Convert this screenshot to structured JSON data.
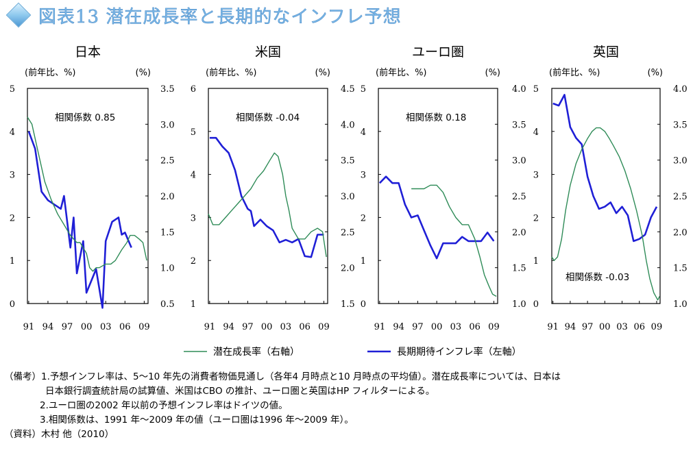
{
  "title": "図表13 潜在成長率と長期的なインフレ予想",
  "legend": {
    "potential": "潜在成長率（右軸）",
    "inflation": "長期期待インフレ率（左軸）"
  },
  "colors": {
    "potential": "#2e8b57",
    "inflation": "#1f1fd6"
  },
  "x_ticks": [
    "91",
    "94",
    "97",
    "00",
    "03",
    "06",
    "09"
  ],
  "chart_data": [
    {
      "type": "line",
      "title": "日本",
      "left_unit": "(前年比、%)",
      "right_unit": "(%)",
      "annotation": "相関係数 0.85",
      "annotation_pos": "top",
      "left_ticks": [
        "0",
        "1",
        "2",
        "3",
        "4",
        "5"
      ],
      "right_ticks": [
        "0.5",
        "1.0",
        "1.5",
        "2.0",
        "2.5",
        "3.0",
        "3.5"
      ],
      "ylim_left": [
        0,
        5
      ],
      "ylim_right": [
        0.5,
        3.5
      ],
      "x": [
        1991,
        1991.5,
        1992,
        1992.5,
        1993,
        1993.5,
        1994,
        1994.5,
        1995,
        1995.5,
        1996,
        1996.5,
        1997,
        1997.5,
        1998,
        1998.5,
        1999,
        1999.5,
        2000,
        2000.5,
        2001,
        2001.5,
        2002,
        2002.5,
        2003,
        2003.5,
        2004,
        2004.5,
        2005,
        2005.5,
        2006,
        2006.5,
        2007,
        2007.5,
        2008,
        2008.5,
        2009,
        2009.5
      ],
      "series": [
        {
          "name": "長期期待インフレ率（左軸）",
          "axis": "left",
          "values": [
            4.0,
            3.6,
            2.6,
            2.4,
            2.3,
            2.2,
            2.5,
            1.3,
            2.0,
            0.7,
            1.45,
            0.25,
            0.8,
            -0.1,
            1.45,
            1.9,
            2.0,
            1.6,
            1.65,
            1.3
          ],
          "x": [
            1991,
            1992,
            1993,
            1994,
            1995,
            1996,
            1996.5,
            1997.5,
            1998,
            1998.5,
            1999.5,
            2000,
            2001.5,
            2002.5,
            2003,
            2004,
            2005,
            2005.5,
            2006,
            2007
          ]
        },
        {
          "name": "潜在成長率（右軸）",
          "axis": "right",
          "values": [
            3.1,
            3.0,
            2.6,
            2.2,
            1.95,
            1.75,
            1.6,
            1.45,
            1.35,
            1.35,
            1.2,
            1.0,
            0.95,
            1.0,
            1.0,
            1.05,
            1.05,
            1.1,
            1.25,
            1.35,
            1.45,
            1.45,
            1.4,
            1.35,
            1.1
          ],
          "x": [
            1990.8,
            1991.5,
            1992.5,
            1993.5,
            1994.5,
            1995.5,
            1996.5,
            1997.5,
            1998.5,
            1999,
            2000,
            2000.5,
            2001,
            2001.5,
            2002,
            2003,
            2003.8,
            2004.5,
            2005.5,
            2006.3,
            2006.8,
            2007.5,
            2008.2,
            2008.8,
            2009.4
          ]
        }
      ]
    },
    {
      "type": "line",
      "title": "米国",
      "left_unit": "(前年比、%)",
      "right_unit": "(%)",
      "annotation": "相関係数 -0.04",
      "annotation_pos": "top",
      "left_ticks": [
        "1",
        "2",
        "3",
        "4",
        "5",
        "6"
      ],
      "right_ticks": [
        "1.5",
        "2.0",
        "2.5",
        "3.0",
        "3.5",
        "4.0",
        "4.5"
      ],
      "ylim_left": [
        1,
        6
      ],
      "ylim_right": [
        1.5,
        4.5
      ],
      "series": [
        {
          "name": "長期期待インフレ率（左軸）",
          "axis": "left",
          "x": [
            1991,
            1992,
            1993,
            1994,
            1995,
            1996,
            1997,
            1997.5,
            1998,
            1999,
            2000,
            2001,
            2002,
            2003,
            2004,
            2005,
            2006,
            2007,
            2008,
            2009
          ],
          "values": [
            4.85,
            4.85,
            4.65,
            4.5,
            4.1,
            3.5,
            3.2,
            3.15,
            2.8,
            2.95,
            2.8,
            2.7,
            2.42,
            2.48,
            2.42,
            2.5,
            2.1,
            2.08,
            2.6,
            2.6
          ]
        },
        {
          "name": "潜在成長率（右軸）",
          "axis": "right",
          "x": [
            1990.8,
            1991.5,
            1992.5,
            1993.5,
            1994.5,
            1995.5,
            1996.5,
            1997.5,
            1998.5,
            1999.5,
            2000.5,
            2001.2,
            2001.8,
            2002.5,
            2003,
            2003.5,
            2004,
            2005,
            2006,
            2007,
            2008,
            2008.8,
            2009.4
          ],
          "values": [
            2.75,
            2.6,
            2.6,
            2.7,
            2.8,
            2.9,
            3.0,
            3.1,
            3.25,
            3.35,
            3.5,
            3.6,
            3.55,
            3.3,
            3.0,
            2.8,
            2.55,
            2.4,
            2.4,
            2.5,
            2.55,
            2.5,
            2.15
          ]
        }
      ]
    },
    {
      "type": "line",
      "title": "ユーロ圏",
      "left_unit": "(前年比、%)",
      "right_unit": "(%)",
      "annotation": "相関係数 0.18",
      "annotation_pos": "top",
      "left_ticks": [
        "0",
        "1",
        "2",
        "3",
        "4",
        "5"
      ],
      "right_ticks": [
        "1.0",
        "1.5",
        "2.0",
        "2.5",
        "3.0",
        "3.5",
        "4.0"
      ],
      "ylim_left": [
        0,
        5
      ],
      "ylim_right": [
        1.0,
        4.0
      ],
      "series": [
        {
          "name": "長期期待インフレ率（左軸）",
          "axis": "left",
          "x": [
            1991,
            1992,
            1993,
            1994,
            1995,
            1996,
            1997,
            1998,
            1999,
            2000,
            2001,
            2002,
            2003,
            2004,
            2005,
            2006,
            2007,
            2008,
            2009
          ],
          "values": [
            2.8,
            2.95,
            2.8,
            2.8,
            2.3,
            2.0,
            2.05,
            1.7,
            1.35,
            1.05,
            1.4,
            1.4,
            1.4,
            1.55,
            1.45,
            1.45,
            1.45,
            1.65,
            1.45
          ]
        },
        {
          "name": "潜在成長率（右軸）",
          "axis": "right",
          "x": [
            1996,
            1997,
            1998,
            1999,
            2000,
            2001,
            2002,
            2003,
            2004,
            2005,
            2006,
            2006.8,
            2007.5,
            2008.2,
            2008.8,
            2009.4
          ],
          "values": [
            2.6,
            2.6,
            2.6,
            2.65,
            2.65,
            2.55,
            2.35,
            2.2,
            2.1,
            2.1,
            1.9,
            1.65,
            1.4,
            1.25,
            1.13,
            1.1
          ]
        }
      ]
    },
    {
      "type": "line",
      "title": "英国",
      "left_unit": "(前年比、%)",
      "right_unit": "(%)",
      "annotation": "相関係数 -0.03",
      "annotation_pos": "bottom",
      "left_ticks": [
        "0",
        "1",
        "2",
        "3",
        "4",
        "5"
      ],
      "right_ticks": [
        "1.0",
        "1.5",
        "2.0",
        "2.5",
        "3.0",
        "3.5",
        "4.0"
      ],
      "ylim_left": [
        0,
        5
      ],
      "ylim_right": [
        1.0,
        4.0
      ],
      "series": [
        {
          "name": "長期期待インフレ率（左軸）",
          "axis": "left",
          "x": [
            1991,
            1992,
            1993,
            1994,
            1995,
            1996,
            1997,
            1998,
            1999,
            2000,
            2001,
            2002,
            2003,
            2004,
            2005,
            2006,
            2007,
            2008,
            2009
          ],
          "values": [
            4.65,
            4.6,
            4.85,
            4.1,
            3.85,
            3.7,
            2.95,
            2.5,
            2.2,
            2.25,
            2.35,
            2.1,
            2.25,
            2.05,
            1.45,
            1.5,
            1.6,
            2.0,
            2.25
          ]
        },
        {
          "name": "潜在成長率（右軸）",
          "axis": "right",
          "x": [
            1990.8,
            1991.2,
            1991.8,
            1992.5,
            1993.2,
            1994,
            1995,
            1996,
            1997,
            1997.8,
            1998.5,
            1999.2,
            2000,
            2000.8,
            2001.5,
            2002.5,
            2003.5,
            2004.5,
            2005.5,
            2006.5,
            2007.2,
            2007.8,
            2008.5,
            2009.2,
            2009.5
          ],
          "values": [
            1.65,
            1.6,
            1.65,
            1.9,
            2.3,
            2.65,
            2.95,
            3.15,
            3.3,
            3.4,
            3.45,
            3.45,
            3.4,
            3.3,
            3.2,
            3.05,
            2.85,
            2.6,
            2.3,
            1.95,
            1.6,
            1.35,
            1.15,
            1.05,
            1.1
          ]
        }
      ]
    }
  ],
  "notes": [
    "（備考）1.予想インフレ率は、5～10 年先の消費者物価見通し（各年4 月時点と10 月時点の平均値）。潜在成長率については、日本は",
    "日本銀行調査統計局の試算値、米国はCBO の推計、ユーロ圏と英国はHP フィルターによる。",
    "2.ユーロ圏の2002 年以前の予想インフレ率はドイツの値。",
    "3.相関係数は、1991 年～2009 年の値（ユーロ圏は1996 年～2009 年）。",
    "（資料）木村 他（2010）"
  ]
}
